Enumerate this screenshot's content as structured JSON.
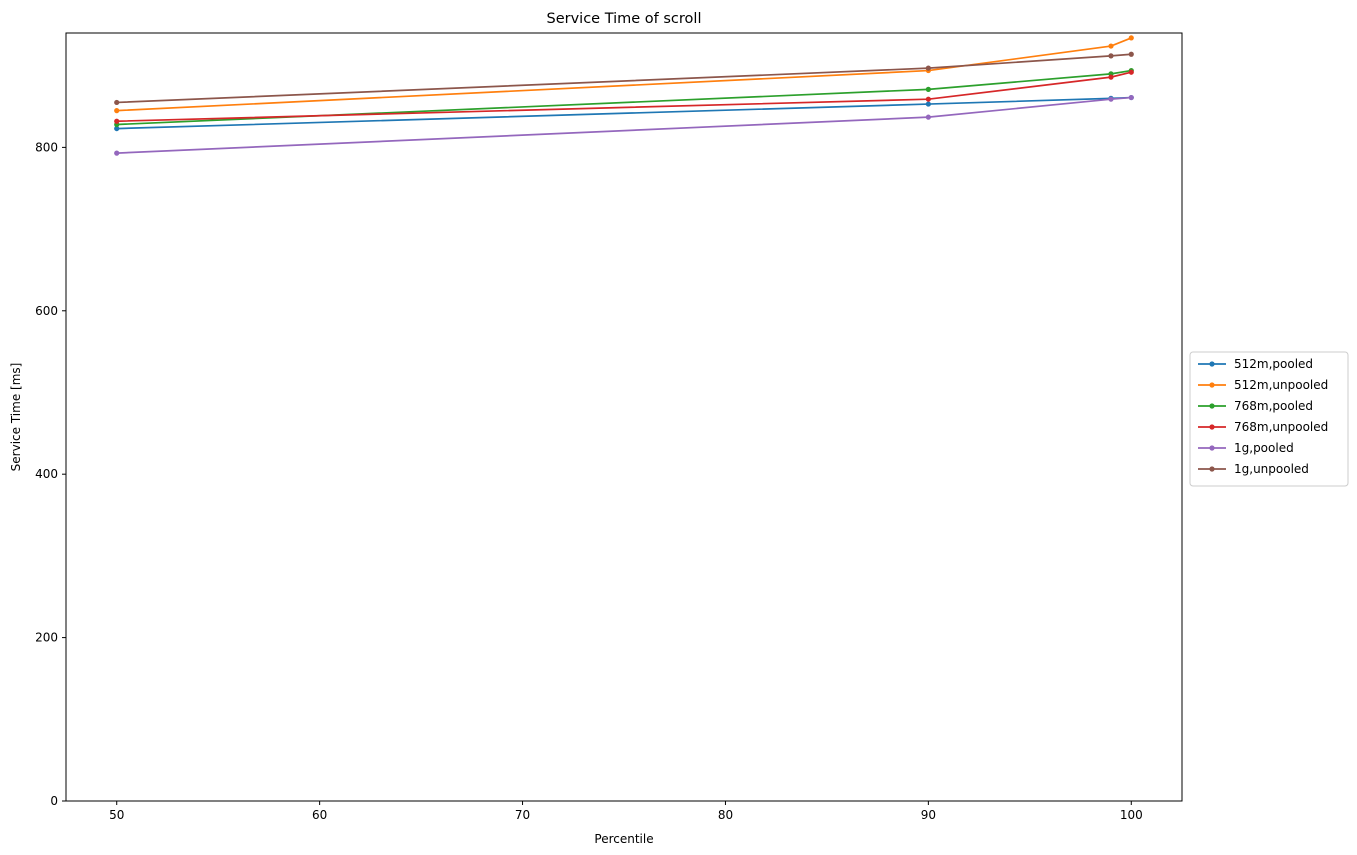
{
  "chart_data": {
    "type": "line",
    "title": "Service Time of scroll",
    "xlabel": "Percentile",
    "ylabel": "Service Time [ms]",
    "xlim": [
      47.5,
      102.5
    ],
    "ylim": [
      0,
      940
    ],
    "xticks": [
      50,
      60,
      70,
      80,
      90,
      100
    ],
    "yticks": [
      0,
      200,
      400,
      600,
      800
    ],
    "grid": false,
    "legend_position": "right-center-outside",
    "x": [
      50,
      90,
      99,
      100
    ],
    "series": [
      {
        "name": "512m,pooled",
        "color": "#1f77b4",
        "values": [
          823,
          853,
          860,
          861
        ]
      },
      {
        "name": "512m,unpooled",
        "color": "#ff7f0e",
        "values": [
          845,
          894,
          924,
          934
        ]
      },
      {
        "name": "768m,pooled",
        "color": "#2ca02c",
        "values": [
          828,
          871,
          890,
          894
        ]
      },
      {
        "name": "768m,unpooled",
        "color": "#d62728",
        "values": [
          832,
          859,
          886,
          892
        ]
      },
      {
        "name": "1g,pooled",
        "color": "#9467bd",
        "values": [
          793,
          837,
          859,
          861
        ]
      },
      {
        "name": "1g,unpooled",
        "color": "#8c564b",
        "values": [
          855,
          897,
          912,
          914
        ]
      }
    ]
  }
}
